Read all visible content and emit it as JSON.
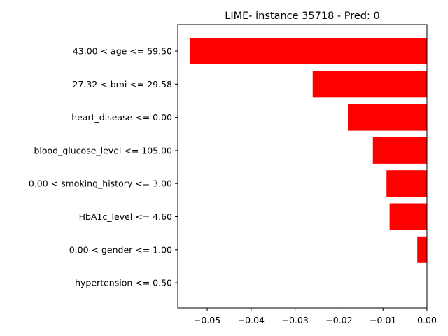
{
  "chart_data": {
    "type": "bar",
    "orientation": "horizontal",
    "title": "LIME- instance 35718 - Pred: 0",
    "xlabel": "",
    "ylabel": "",
    "categories": [
      "43.00 < age <= 59.50",
      "27.32 < bmi <= 29.58",
      "heart_disease <= 0.00",
      "blood_glucose_level <= 105.00",
      "0.00 < smoking_history <= 3.00",
      "HbA1c_level <= 4.60",
      "0.00 < gender <= 1.00",
      "hypertension <= 0.50"
    ],
    "values": [
      -0.054,
      -0.026,
      -0.018,
      -0.0123,
      -0.0092,
      -0.0085,
      -0.0022,
      0.0
    ],
    "bar_color": "#ff0000",
    "xlim": [
      -0.0567,
      0.0
    ],
    "xticks": [
      -0.05,
      -0.04,
      -0.03,
      -0.02,
      -0.01,
      0.0
    ],
    "xtick_labels": [
      "−0.05",
      "−0.04",
      "−0.03",
      "−0.02",
      "−0.01",
      "0.00"
    ],
    "grid": false,
    "legend": "none"
  }
}
